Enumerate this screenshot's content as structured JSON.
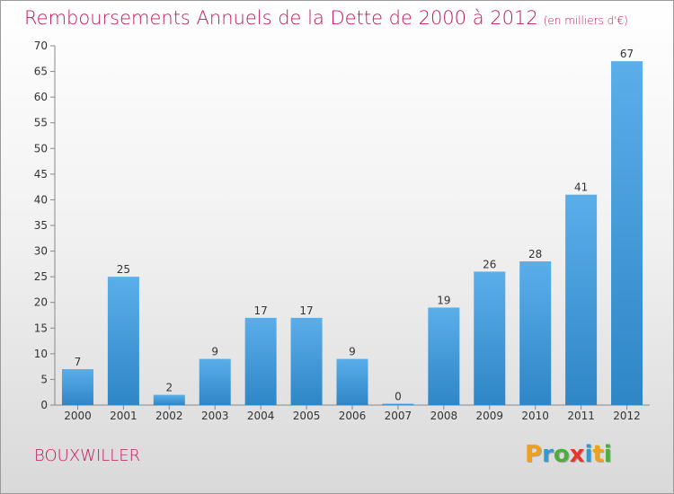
{
  "header": {
    "title": "Remboursements Annuels de la Dette de 2000 à 2012",
    "subtitle": "(en milliers d'€)"
  },
  "footer": {
    "city": "BOUXWILLER",
    "brand_letters": [
      {
        "char": "P",
        "color": "#f0a020"
      },
      {
        "char": "r",
        "color": "#2e9ad6"
      },
      {
        "char": "o",
        "color": "#4cae3c"
      },
      {
        "char": "x",
        "color": "#e8342c"
      },
      {
        "char": "i",
        "color": "#2e9ad6"
      },
      {
        "char": "t",
        "color": "#f0a020"
      },
      {
        "char": "i",
        "color": "#4cae3c"
      }
    ]
  },
  "colors": {
    "title": "#c2185b",
    "bar_light": "#5aaeea",
    "bar_dark": "#2f86c6",
    "axis_text": "#333333"
  },
  "chart_data": {
    "type": "bar",
    "categories": [
      "2000",
      "2001",
      "2002",
      "2003",
      "2004",
      "2005",
      "2006",
      "2007",
      "2008",
      "2009",
      "2010",
      "2011",
      "2012"
    ],
    "values": [
      7,
      25,
      2,
      9,
      17,
      17,
      9,
      0,
      19,
      26,
      28,
      41,
      67
    ],
    "ylim": [
      0,
      70
    ],
    "yticks": [
      0,
      5,
      10,
      15,
      20,
      25,
      30,
      35,
      40,
      45,
      50,
      55,
      60,
      65,
      70
    ],
    "grid": false,
    "data_labels": true
  }
}
